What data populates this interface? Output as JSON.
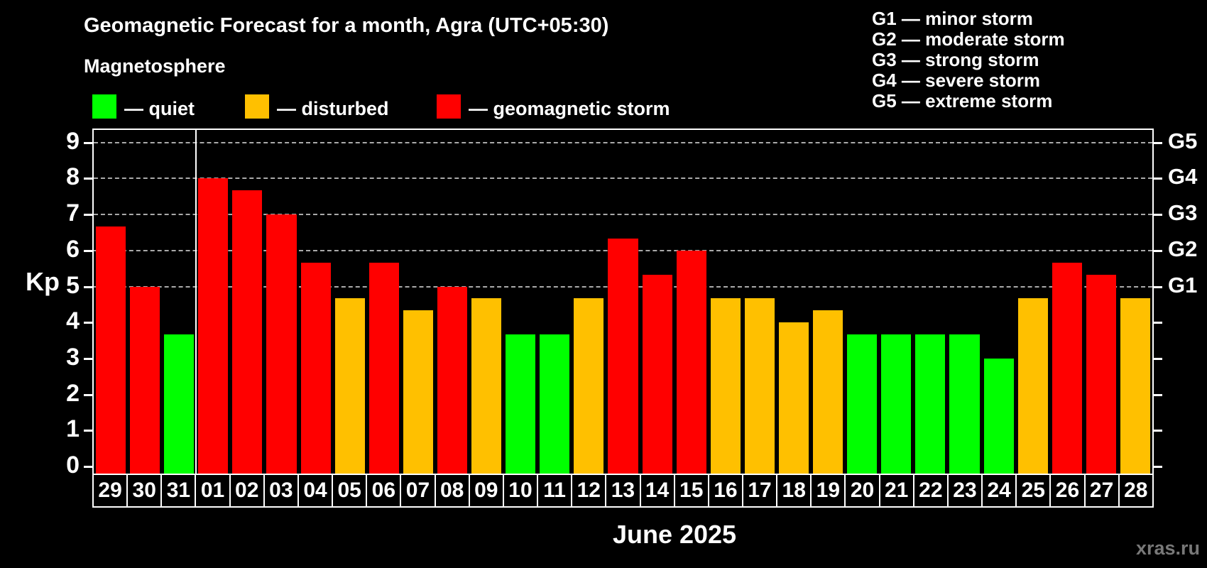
{
  "header": {
    "title": "Geomagnetic Forecast for a month, Agra (UTC+05:30)",
    "subtitle": "Magnetosphere"
  },
  "legend": {
    "quiet": "— quiet",
    "disturbed": "— disturbed",
    "storm": "— geomagnetic storm"
  },
  "storm_scale_legend": [
    "G1 — minor storm",
    "G2 — moderate storm",
    "G3 — strong storm",
    "G4 — severe storm",
    "G5 — extreme storm"
  ],
  "axes": {
    "y_left_label": "Kp",
    "y_left_ticks": [
      0,
      1,
      2,
      3,
      4,
      5,
      6,
      7,
      8,
      9
    ],
    "y_right_labels": [
      {
        "kp": 5,
        "label": "G1"
      },
      {
        "kp": 6,
        "label": "G2"
      },
      {
        "kp": 7,
        "label": "G3"
      },
      {
        "kp": 8,
        "label": "G4"
      },
      {
        "kp": 9,
        "label": "G5"
      }
    ]
  },
  "footer": {
    "month_label": "June 2025",
    "watermark": "xras.ru"
  },
  "colors": {
    "quiet": "#00FF00",
    "disturbed": "#FFC000",
    "storm": "#FF0000",
    "axis": "#FFFFFF",
    "grid": "#AAAAAA",
    "background": "#000000",
    "watermark": "#787878"
  },
  "chart_data": {
    "type": "bar",
    "title": "Geomagnetic Forecast for a month, Agra (UTC+05:30)",
    "xlabel": "June 2025",
    "ylabel": "Kp",
    "ylim": [
      0,
      9.5
    ],
    "grid_levels": [
      5,
      6,
      7,
      8,
      9
    ],
    "legend_position": "top",
    "month_separator_after_index": 2,
    "categories": [
      "29",
      "30",
      "31",
      "01",
      "02",
      "03",
      "04",
      "05",
      "06",
      "07",
      "08",
      "09",
      "10",
      "11",
      "12",
      "13",
      "14",
      "15",
      "16",
      "17",
      "18",
      "19",
      "20",
      "21",
      "22",
      "23",
      "24",
      "25",
      "26",
      "27",
      "28"
    ],
    "values": [
      6.67,
      5.0,
      3.67,
      8.0,
      7.67,
      7.0,
      5.67,
      4.67,
      5.67,
      4.33,
      5.0,
      4.67,
      3.67,
      3.67,
      4.67,
      6.33,
      5.33,
      6.0,
      4.67,
      4.67,
      4.0,
      4.33,
      3.67,
      3.67,
      3.67,
      3.67,
      3.0,
      4.67,
      5.67,
      5.33,
      4.67
    ],
    "points": [
      {
        "date": "29",
        "kp": 6.67,
        "status": "storm"
      },
      {
        "date": "30",
        "kp": 5.0,
        "status": "storm"
      },
      {
        "date": "31",
        "kp": 3.67,
        "status": "quiet"
      },
      {
        "date": "01",
        "kp": 8.0,
        "status": "storm"
      },
      {
        "date": "02",
        "kp": 7.67,
        "status": "storm"
      },
      {
        "date": "03",
        "kp": 7.0,
        "status": "storm"
      },
      {
        "date": "04",
        "kp": 5.67,
        "status": "storm"
      },
      {
        "date": "05",
        "kp": 4.67,
        "status": "disturbed"
      },
      {
        "date": "06",
        "kp": 5.67,
        "status": "storm"
      },
      {
        "date": "07",
        "kp": 4.33,
        "status": "disturbed"
      },
      {
        "date": "08",
        "kp": 5.0,
        "status": "storm"
      },
      {
        "date": "09",
        "kp": 4.67,
        "status": "disturbed"
      },
      {
        "date": "10",
        "kp": 3.67,
        "status": "quiet"
      },
      {
        "date": "11",
        "kp": 3.67,
        "status": "quiet"
      },
      {
        "date": "12",
        "kp": 4.67,
        "status": "disturbed"
      },
      {
        "date": "13",
        "kp": 6.33,
        "status": "storm"
      },
      {
        "date": "14",
        "kp": 5.33,
        "status": "storm"
      },
      {
        "date": "15",
        "kp": 6.0,
        "status": "storm"
      },
      {
        "date": "16",
        "kp": 4.67,
        "status": "disturbed"
      },
      {
        "date": "17",
        "kp": 4.67,
        "status": "disturbed"
      },
      {
        "date": "18",
        "kp": 4.0,
        "status": "disturbed"
      },
      {
        "date": "19",
        "kp": 4.33,
        "status": "disturbed"
      },
      {
        "date": "20",
        "kp": 3.67,
        "status": "quiet"
      },
      {
        "date": "21",
        "kp": 3.67,
        "status": "quiet"
      },
      {
        "date": "22",
        "kp": 3.67,
        "status": "quiet"
      },
      {
        "date": "23",
        "kp": 3.67,
        "status": "quiet"
      },
      {
        "date": "24",
        "kp": 3.0,
        "status": "quiet"
      },
      {
        "date": "25",
        "kp": 4.67,
        "status": "disturbed"
      },
      {
        "date": "26",
        "kp": 5.67,
        "status": "storm"
      },
      {
        "date": "27",
        "kp": 5.33,
        "status": "storm"
      },
      {
        "date": "28",
        "kp": 4.67,
        "status": "disturbed"
      }
    ]
  }
}
